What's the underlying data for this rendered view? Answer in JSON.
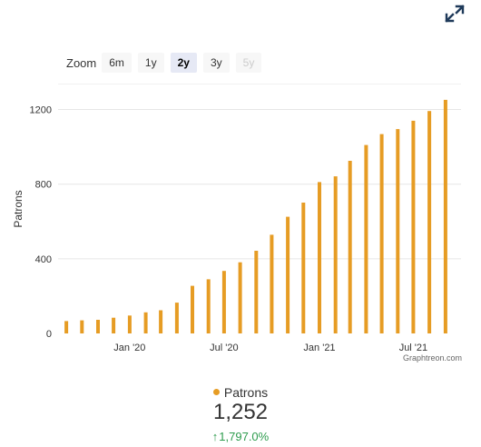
{
  "controls": {
    "expand_icon": "expand-arrows-icon",
    "zoom_label": "Zoom",
    "zoom_options": [
      {
        "label": "6m",
        "state": "normal"
      },
      {
        "label": "1y",
        "state": "normal"
      },
      {
        "label": "2y",
        "state": "active"
      },
      {
        "label": "3y",
        "state": "normal"
      },
      {
        "label": "5y",
        "state": "disabled"
      }
    ]
  },
  "credit": "Graphtreon.com",
  "colors": {
    "bar": "#e69c24",
    "grid": "#e6e6e6",
    "axis_text": "#333333",
    "up": "#2e9c4e",
    "icon": "#1f3a5a"
  },
  "summary": {
    "legend_label": "Patrons",
    "total": "1,252",
    "change": "1,797.0%",
    "change_direction": "up"
  },
  "chart_data": {
    "type": "bar",
    "title": "",
    "ylabel": "Patrons",
    "xlabel": "",
    "ylim": [
      0,
      1300
    ],
    "y_ticks": [
      0,
      400,
      800,
      1200
    ],
    "grid": true,
    "legend": "bottom-center",
    "x_range": [
      "2019-08-16",
      "2021-10-01"
    ],
    "x_tick_labels": [
      {
        "label": "Jan '20",
        "date": "2020-01-01"
      },
      {
        "label": "Jul '20",
        "date": "2020-07-01"
      },
      {
        "label": "Jan '21",
        "date": "2021-01-01"
      },
      {
        "label": "Jul '21",
        "date": "2021-07-01"
      }
    ],
    "series": [
      {
        "name": "Patrons",
        "points": [
          {
            "x": "2019-09-01",
            "y": 66
          },
          {
            "x": "2019-10-01",
            "y": 70
          },
          {
            "x": "2019-11-01",
            "y": 73
          },
          {
            "x": "2019-12-01",
            "y": 84
          },
          {
            "x": "2020-01-01",
            "y": 96
          },
          {
            "x": "2020-02-01",
            "y": 113
          },
          {
            "x": "2020-03-01",
            "y": 124
          },
          {
            "x": "2020-04-01",
            "y": 165
          },
          {
            "x": "2020-05-01",
            "y": 255
          },
          {
            "x": "2020-06-01",
            "y": 290
          },
          {
            "x": "2020-07-01",
            "y": 335
          },
          {
            "x": "2020-08-01",
            "y": 381
          },
          {
            "x": "2020-09-01",
            "y": 443
          },
          {
            "x": "2020-10-01",
            "y": 529
          },
          {
            "x": "2020-11-01",
            "y": 625
          },
          {
            "x": "2020-12-01",
            "y": 701
          },
          {
            "x": "2021-01-01",
            "y": 811
          },
          {
            "x": "2021-02-01",
            "y": 842
          },
          {
            "x": "2021-03-01",
            "y": 925
          },
          {
            "x": "2021-04-01",
            "y": 1010
          },
          {
            "x": "2021-05-01",
            "y": 1068
          },
          {
            "x": "2021-06-01",
            "y": 1095
          },
          {
            "x": "2021-07-01",
            "y": 1140
          },
          {
            "x": "2021-08-01",
            "y": 1192
          },
          {
            "x": "2021-09-01",
            "y": 1252
          }
        ]
      }
    ]
  }
}
